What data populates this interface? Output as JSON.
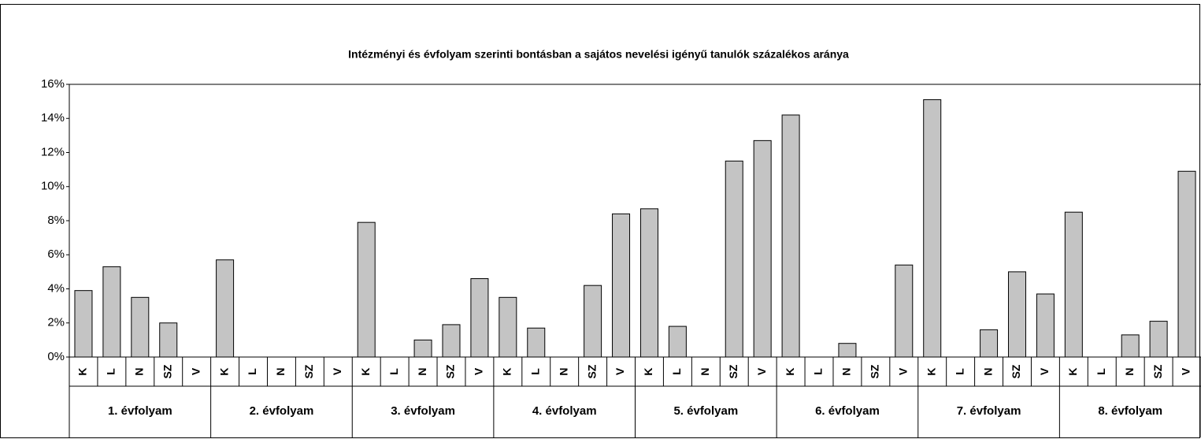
{
  "chart_data": {
    "type": "bar",
    "title": "Intézményi és évfolyam szerinti bontásban a sajátos nevelési igényű tanulók százalékos aránya",
    "categories": [
      "1. évfolyam",
      "2. évfolyam",
      "3. évfolyam",
      "4. évfolyam",
      "5. évfolyam",
      "6. évfolyam",
      "7. évfolyam",
      "8. évfolyam"
    ],
    "subcategories": [
      "K",
      "L",
      "N",
      "SZ",
      "V"
    ],
    "values": [
      [
        3.9,
        5.3,
        3.5,
        2.0,
        null
      ],
      [
        5.7,
        null,
        null,
        null,
        null
      ],
      [
        7.9,
        null,
        1.0,
        1.9,
        4.6
      ],
      [
        3.5,
        1.7,
        null,
        4.2,
        8.4
      ],
      [
        8.7,
        1.8,
        null,
        11.5,
        12.7
      ],
      [
        14.2,
        null,
        0.8,
        null,
        5.4
      ],
      [
        15.1,
        null,
        1.6,
        5.0,
        3.7
      ],
      [
        8.5,
        null,
        1.3,
        2.1,
        10.9
      ]
    ],
    "color": "#c4c4c4",
    "ylim": [
      0,
      16
    ],
    "yticks": [
      {
        "value": 0,
        "label": "0%"
      },
      {
        "value": 2,
        "label": "2%"
      },
      {
        "value": 4,
        "label": "4%"
      },
      {
        "value": 6,
        "label": "6%"
      },
      {
        "value": 8,
        "label": "8%"
      },
      {
        "value": 10,
        "label": "10%"
      },
      {
        "value": 12,
        "label": "12%"
      },
      {
        "value": 14,
        "label": "14%"
      },
      {
        "value": 16,
        "label": "16%"
      }
    ],
    "grid": false
  }
}
